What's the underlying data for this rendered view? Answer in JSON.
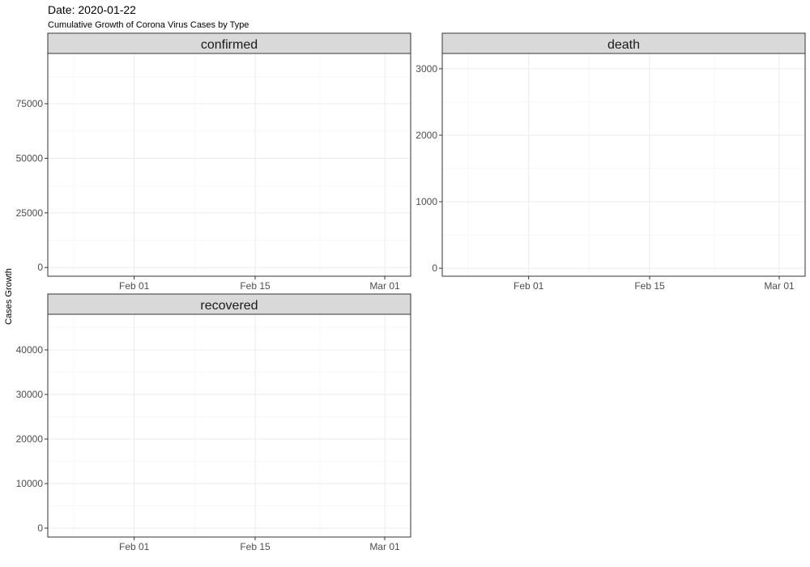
{
  "header": {
    "title": "Date: 2020-01-22",
    "subtitle": "Cumulative Growth of Corona Virus Cases by Type"
  },
  "colors": {
    "strip_fill": "#d9d9d9",
    "panel_border": "#333333",
    "grid": "#ebebeb"
  },
  "chart_data": {
    "type": "line",
    "title": "Date: 2020-01-22",
    "subtitle": "Cumulative Growth of Corona Virus Cases by Type",
    "xlabel": "",
    "ylabel": "Cases Growth",
    "grid": true,
    "x_ticks": [
      "Feb 01",
      "Feb 15",
      "Mar 01"
    ],
    "x_tick_dates": [
      "2020-02-01",
      "2020-02-15",
      "2020-03-01"
    ],
    "xlim": [
      "2020-01-22",
      "2020-03-04"
    ],
    "facets": [
      {
        "name": "confirmed",
        "y_ticks": [
          0,
          25000,
          50000,
          75000
        ],
        "ylim": [
          -4000,
          98000
        ],
        "series": []
      },
      {
        "name": "death",
        "y_ticks": [
          0,
          1000,
          2000,
          3000
        ],
        "ylim": [
          -120,
          3230
        ],
        "series": []
      },
      {
        "name": "recovered",
        "y_ticks": [
          0,
          10000,
          20000,
          30000,
          40000
        ],
        "ylim": [
          -2000,
          48000
        ],
        "series": []
      }
    ]
  }
}
